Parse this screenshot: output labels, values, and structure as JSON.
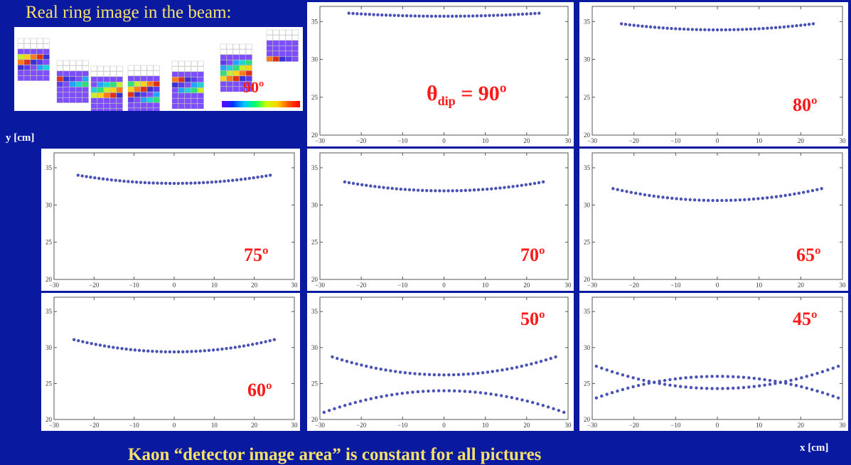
{
  "slide": {
    "inset_title": "Real ring image in the beam:",
    "inset_angle": "90º",
    "y_label": "y [cm]",
    "x_label": "x [cm]",
    "footer": "Kaon “detector image area” is constant for all pictures"
  },
  "colors": {
    "background": "#0a1aa0",
    "title_text": "#f5e06a",
    "angle_text": "#ff1a1a",
    "points": "#4a52b6"
  },
  "chart_data": [
    {
      "type": "scatter",
      "label": "θdip = 90º",
      "xlim": [
        -30,
        30
      ],
      "ylim": [
        20,
        37
      ],
      "xticks": [
        -30,
        -20,
        -10,
        0,
        10,
        20,
        30
      ],
      "yticks": [
        20,
        25,
        30,
        35
      ],
      "series": [
        {
          "type": "parabola",
          "x_range": [
            -23,
            23
          ],
          "y_center": 35.7,
          "y_edge": 36.1
        }
      ]
    },
    {
      "type": "scatter",
      "label": "80º",
      "xlim": [
        -30,
        30
      ],
      "ylim": [
        20,
        37
      ],
      "xticks": [
        -30,
        -20,
        -10,
        0,
        10,
        20,
        30
      ],
      "yticks": [
        20,
        25,
        30,
        35
      ],
      "series": [
        {
          "type": "parabola",
          "x_range": [
            -23,
            23
          ],
          "y_center": 33.9,
          "y_edge": 34.7
        }
      ]
    },
    {
      "type": "scatter",
      "label": "75º",
      "xlim": [
        -30,
        30
      ],
      "ylim": [
        20,
        37
      ],
      "xticks": [
        -30,
        -20,
        -10,
        0,
        10,
        20,
        30
      ],
      "yticks": [
        20,
        25,
        30,
        35
      ],
      "series": [
        {
          "type": "parabola",
          "x_range": [
            -24,
            24
          ],
          "y_center": 32.9,
          "y_edge": 34.0
        }
      ]
    },
    {
      "type": "scatter",
      "label": "70º",
      "xlim": [
        -30,
        30
      ],
      "ylim": [
        20,
        37
      ],
      "xticks": [
        -30,
        -20,
        -10,
        0,
        10,
        20,
        30
      ],
      "yticks": [
        20,
        25,
        30,
        35
      ],
      "series": [
        {
          "type": "parabola",
          "x_range": [
            -24,
            24
          ],
          "y_center": 31.9,
          "y_edge": 33.1
        }
      ]
    },
    {
      "type": "scatter",
      "label": "65º",
      "xlim": [
        -30,
        30
      ],
      "ylim": [
        20,
        37
      ],
      "xticks": [
        -30,
        -20,
        -10,
        0,
        10,
        20,
        30
      ],
      "yticks": [
        20,
        25,
        30,
        35
      ],
      "series": [
        {
          "type": "parabola",
          "x_range": [
            -25,
            25
          ],
          "y_center": 30.6,
          "y_edge": 32.2
        }
      ]
    },
    {
      "type": "scatter",
      "label": "60º",
      "xlim": [
        -30,
        30
      ],
      "ylim": [
        20,
        37
      ],
      "xticks": [
        -30,
        -20,
        -10,
        0,
        10,
        20,
        30
      ],
      "yticks": [
        20,
        25,
        30,
        35
      ],
      "series": [
        {
          "type": "parabola",
          "x_range": [
            -25,
            25
          ],
          "y_center": 29.4,
          "y_edge": 31.1
        }
      ]
    },
    {
      "type": "scatter",
      "label": "50º",
      "xlim": [
        -30,
        30
      ],
      "ylim": [
        20,
        37
      ],
      "xticks": [
        -30,
        -20,
        -10,
        0,
        10,
        20,
        30
      ],
      "yticks": [
        20,
        25,
        30,
        35
      ],
      "series": [
        {
          "type": "parabola",
          "x_range": [
            -27,
            27
          ],
          "y_center": 26.2,
          "y_edge": 28.7
        },
        {
          "type": "parabola",
          "x_range": [
            -29,
            29
          ],
          "y_center": 24.0,
          "y_edge": 21.0
        }
      ]
    },
    {
      "type": "scatter",
      "label": "45º",
      "xlim": [
        -30,
        30
      ],
      "ylim": [
        20,
        37
      ],
      "xticks": [
        -30,
        -20,
        -10,
        0,
        10,
        20,
        30
      ],
      "yticks": [
        20,
        25,
        30,
        35
      ],
      "series": [
        {
          "type": "parabola",
          "x_range": [
            -29,
            29
          ],
          "y_center": 24.3,
          "y_edge": 27.4
        },
        {
          "type": "parabola",
          "x_range": [
            -29,
            29
          ],
          "y_center": 26.0,
          "y_edge": 23.0
        }
      ]
    }
  ]
}
